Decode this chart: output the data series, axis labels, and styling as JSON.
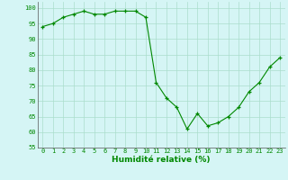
{
  "x": [
    0,
    1,
    2,
    3,
    4,
    5,
    6,
    7,
    8,
    9,
    10,
    11,
    12,
    13,
    14,
    15,
    16,
    17,
    18,
    19,
    20,
    21,
    22,
    23
  ],
  "y": [
    94,
    95,
    97,
    98,
    99,
    98,
    98,
    99,
    99,
    99,
    97,
    76,
    71,
    68,
    61,
    66,
    62,
    63,
    65,
    68,
    73,
    76,
    81,
    84
  ],
  "line_color": "#008800",
  "marker": "+",
  "marker_size": 3.5,
  "bg_color": "#d5f5f5",
  "grid_color": "#aaddcc",
  "xlabel": "Humidité relative (%)",
  "xlabel_color": "#008800",
  "ylim": [
    55,
    102
  ],
  "yticks": [
    55,
    60,
    65,
    70,
    75,
    80,
    85,
    90,
    95,
    100
  ],
  "xticks": [
    0,
    1,
    2,
    3,
    4,
    5,
    6,
    7,
    8,
    9,
    10,
    11,
    12,
    13,
    14,
    15,
    16,
    17,
    18,
    19,
    20,
    21,
    22,
    23
  ],
  "tick_fontsize": 5.0,
  "xlabel_fontsize": 6.5
}
